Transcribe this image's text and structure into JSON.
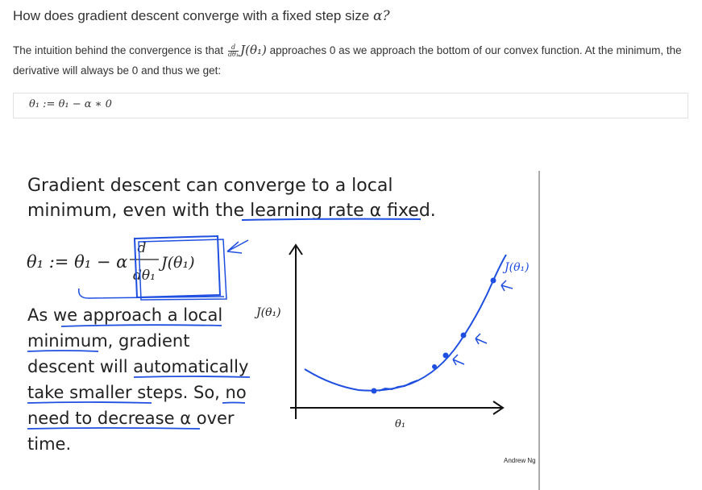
{
  "question": {
    "text": "How does gradient descent converge with a fixed step size ",
    "symbol": "α?"
  },
  "intro": {
    "before": "The intuition behind the convergence is that ",
    "frac_num": "d",
    "frac_den": "dθ₁",
    "func": "J(θ₁)",
    "after": " approaches 0 as we approach the bottom of our convex function. At the minimum, the derivative will always be 0 and thus we get:"
  },
  "equation_box": {
    "text": "θ₁ := θ₁ − α ∗ 0"
  },
  "slide": {
    "heading_line1": "Gradient descent can converge to a local",
    "heading_line2": "minimum, even with the learning rate α fixed.",
    "update_lhs": "θ₁ := θ₁ − α",
    "update_num": "d",
    "update_den": "dθ₁",
    "update_func": "J(θ₁)",
    "body_lines": [
      "As we approach a local",
      "minimum, gradient",
      "descent will automatically",
      "take smaller steps. So, no",
      "need to decrease α over",
      "time."
    ],
    "y_axis_label": "J(θ₁)",
    "x_axis_label": "θ₁",
    "curve_label": "J(θ₁)",
    "credit": "Andrew Ng"
  },
  "colors": {
    "ink_blue": "#1f4fe0",
    "text": "#333333"
  }
}
